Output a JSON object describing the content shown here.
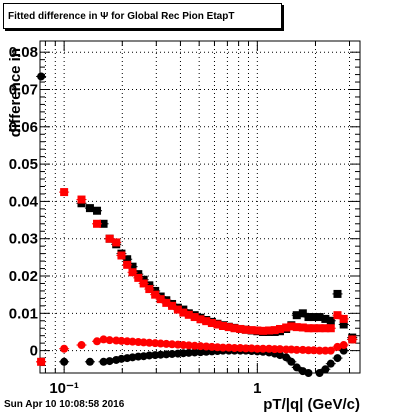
{
  "title": "Fitted difference in Ψ  for Global Rec Pion EtapT",
  "date": "Sun Apr 10 10:08:58 2016",
  "chart_data": {
    "type": "scatter",
    "title": "Fitted difference in Ψ  for Global Rec Pion EtapT",
    "xlabel": "pT/|q| (GeV/c)",
    "ylabel": "difference in",
    "xscale": "log",
    "xlim": [
      0.075,
      3.4
    ],
    "ylim": [
      -0.006,
      0.083
    ],
    "grid": true,
    "x_tick_labels": [
      "10⁻¹",
      "1"
    ],
    "y_tick_labels": [
      "0",
      "0.01",
      "0.02",
      "0.03",
      "0.04",
      "0.05",
      "0.06",
      "0.07",
      "0.08"
    ],
    "colors": {
      "black": "#000000",
      "red": "#ff0000"
    },
    "series": [
      {
        "color": "#000000",
        "marker": "square",
        "points": [
          [
            0.123,
            0.0395
          ],
          [
            0.136,
            0.0382
          ],
          [
            0.148,
            0.0375
          ],
          [
            0.16,
            0.034
          ],
          [
            0.172,
            0.03
          ],
          [
            0.186,
            0.0285
          ],
          [
            0.198,
            0.026
          ],
          [
            0.212,
            0.0245
          ],
          [
            0.226,
            0.0225
          ],
          [
            0.242,
            0.0205
          ],
          [
            0.258,
            0.019
          ],
          [
            0.276,
            0.0175
          ],
          [
            0.296,
            0.016
          ],
          [
            0.316,
            0.0145
          ],
          [
            0.338,
            0.0135
          ],
          [
            0.362,
            0.0125
          ],
          [
            0.388,
            0.0115
          ],
          [
            0.414,
            0.011
          ],
          [
            0.442,
            0.01
          ],
          [
            0.474,
            0.0095
          ],
          [
            0.508,
            0.0088
          ],
          [
            0.544,
            0.0082
          ],
          [
            0.582,
            0.0077
          ],
          [
            0.622,
            0.0072
          ],
          [
            0.664,
            0.0068
          ],
          [
            0.712,
            0.0064
          ],
          [
            0.762,
            0.0061
          ],
          [
            0.816,
            0.0058
          ],
          [
            0.872,
            0.0056
          ],
          [
            0.934,
            0.0054
          ],
          [
            1.0,
            0.0052
          ],
          [
            1.07,
            0.005
          ],
          [
            1.15,
            0.005
          ],
          [
            1.23,
            0.005
          ],
          [
            1.31,
            0.0052
          ],
          [
            1.41,
            0.0058
          ],
          [
            1.5,
            0.0068
          ],
          [
            1.6,
            0.0095
          ],
          [
            1.72,
            0.01
          ],
          [
            1.84,
            0.009
          ],
          [
            1.96,
            0.009
          ],
          [
            2.1,
            0.009
          ],
          [
            2.25,
            0.0085
          ],
          [
            2.4,
            0.008
          ],
          [
            2.6,
            0.0152
          ],
          [
            2.8,
            0.007
          ],
          [
            3.1,
            0.0035
          ]
        ]
      },
      {
        "color": "#ff0000",
        "marker": "square",
        "points": [
          [
            0.076,
            -0.003
          ],
          [
            0.1,
            0.0425
          ],
          [
            0.123,
            0.0405
          ],
          [
            0.148,
            0.034
          ],
          [
            0.172,
            0.03
          ],
          [
            0.186,
            0.029
          ],
          [
            0.198,
            0.0255
          ],
          [
            0.212,
            0.023
          ],
          [
            0.226,
            0.021
          ],
          [
            0.242,
            0.0195
          ],
          [
            0.258,
            0.018
          ],
          [
            0.276,
            0.0165
          ],
          [
            0.296,
            0.015
          ],
          [
            0.316,
            0.0138
          ],
          [
            0.338,
            0.0128
          ],
          [
            0.362,
            0.012
          ],
          [
            0.388,
            0.011
          ],
          [
            0.414,
            0.0102
          ],
          [
            0.442,
            0.0096
          ],
          [
            0.474,
            0.009
          ],
          [
            0.508,
            0.0084
          ],
          [
            0.544,
            0.0079
          ],
          [
            0.582,
            0.0074
          ],
          [
            0.622,
            0.007
          ],
          [
            0.664,
            0.0066
          ],
          [
            0.712,
            0.0063
          ],
          [
            0.762,
            0.006
          ],
          [
            0.816,
            0.0058
          ],
          [
            0.872,
            0.0056
          ],
          [
            0.934,
            0.0055
          ],
          [
            1.0,
            0.0054
          ],
          [
            1.07,
            0.0053
          ],
          [
            1.15,
            0.0054
          ],
          [
            1.23,
            0.0055
          ],
          [
            1.31,
            0.0058
          ],
          [
            1.41,
            0.0062
          ],
          [
            1.5,
            0.0065
          ],
          [
            1.6,
            0.0063
          ],
          [
            1.72,
            0.0062
          ],
          [
            1.84,
            0.006
          ],
          [
            1.96,
            0.006
          ],
          [
            2.1,
            0.006
          ],
          [
            2.25,
            0.006
          ],
          [
            2.4,
            0.006
          ],
          [
            2.6,
            0.0095
          ],
          [
            2.8,
            0.0085
          ],
          [
            3.1,
            0.003
          ]
        ]
      },
      {
        "color": "#000000",
        "marker": "circle",
        "points": [
          [
            0.076,
            0.0735
          ],
          [
            0.1,
            -0.003
          ],
          [
            0.136,
            -0.003
          ],
          [
            0.16,
            -0.003
          ],
          [
            0.172,
            -0.0028
          ],
          [
            0.186,
            -0.0025
          ],
          [
            0.198,
            -0.0022
          ],
          [
            0.212,
            -0.002
          ],
          [
            0.226,
            -0.0018
          ],
          [
            0.242,
            -0.0016
          ],
          [
            0.258,
            -0.0015
          ],
          [
            0.276,
            -0.0013
          ],
          [
            0.296,
            -0.0012
          ],
          [
            0.316,
            -0.0011
          ],
          [
            0.338,
            -0.001
          ],
          [
            0.362,
            -0.0009
          ],
          [
            0.388,
            -0.0008
          ],
          [
            0.414,
            -0.0007
          ],
          [
            0.442,
            -0.0006
          ],
          [
            0.474,
            -0.0005
          ],
          [
            0.508,
            -0.0004
          ],
          [
            0.544,
            -0.0003
          ],
          [
            0.582,
            -0.0002
          ],
          [
            0.622,
            -0.0001
          ],
          [
            0.664,
            0.0
          ],
          [
            0.712,
            0.0
          ],
          [
            0.762,
            0.0
          ],
          [
            0.816,
            0.0
          ],
          [
            0.872,
            0.0
          ],
          [
            0.934,
            -0.0001
          ],
          [
            1.0,
            -0.0002
          ],
          [
            1.07,
            -0.0003
          ],
          [
            1.15,
            -0.0005
          ],
          [
            1.23,
            -0.0008
          ],
          [
            1.31,
            -0.0012
          ],
          [
            1.41,
            -0.0018
          ],
          [
            1.5,
            -0.003
          ],
          [
            1.6,
            -0.0045
          ],
          [
            1.72,
            -0.0055
          ],
          [
            1.84,
            -0.006
          ],
          [
            1.96,
            -0.0065
          ],
          [
            2.1,
            -0.006
          ],
          [
            2.25,
            -0.005
          ],
          [
            2.4,
            -0.0035
          ],
          [
            2.6,
            -0.002
          ],
          [
            2.8,
            0.0
          ],
          [
            3.1,
            0.003
          ]
        ]
      },
      {
        "color": "#ff0000",
        "marker": "circle",
        "points": [
          [
            0.076,
            -0.003
          ],
          [
            0.1,
            0.0005
          ],
          [
            0.123,
            0.0015
          ],
          [
            0.148,
            0.0025
          ],
          [
            0.16,
            0.003
          ],
          [
            0.172,
            0.0028
          ],
          [
            0.186,
            0.0027
          ],
          [
            0.198,
            0.0026
          ],
          [
            0.212,
            0.0025
          ],
          [
            0.226,
            0.0024
          ],
          [
            0.242,
            0.0023
          ],
          [
            0.258,
            0.0022
          ],
          [
            0.276,
            0.0021
          ],
          [
            0.296,
            0.002
          ],
          [
            0.316,
            0.0019
          ],
          [
            0.338,
            0.0018
          ],
          [
            0.362,
            0.0017
          ],
          [
            0.388,
            0.0016
          ],
          [
            0.414,
            0.0015
          ],
          [
            0.442,
            0.0014
          ],
          [
            0.474,
            0.0013
          ],
          [
            0.508,
            0.0012
          ],
          [
            0.544,
            0.0011
          ],
          [
            0.582,
            0.001
          ],
          [
            0.622,
            0.0009
          ],
          [
            0.664,
            0.0008
          ],
          [
            0.712,
            0.0008
          ],
          [
            0.762,
            0.0007
          ],
          [
            0.816,
            0.0007
          ],
          [
            0.872,
            0.0006
          ],
          [
            0.934,
            0.0006
          ],
          [
            1.0,
            0.0005
          ],
          [
            1.07,
            0.0005
          ],
          [
            1.15,
            0.0005
          ],
          [
            1.23,
            0.0004
          ],
          [
            1.31,
            0.0004
          ],
          [
            1.41,
            0.0003
          ],
          [
            1.5,
            0.0003
          ],
          [
            1.6,
            0.0002
          ],
          [
            1.72,
            0.0002
          ],
          [
            1.84,
            0.0001
          ],
          [
            1.96,
            0.0001
          ],
          [
            2.1,
            0.0
          ],
          [
            2.25,
            0.0
          ],
          [
            2.4,
            0.0
          ],
          [
            2.6,
            0.001
          ],
          [
            2.8,
            0.0015
          ],
          [
            3.1,
            0.003
          ]
        ]
      }
    ]
  }
}
